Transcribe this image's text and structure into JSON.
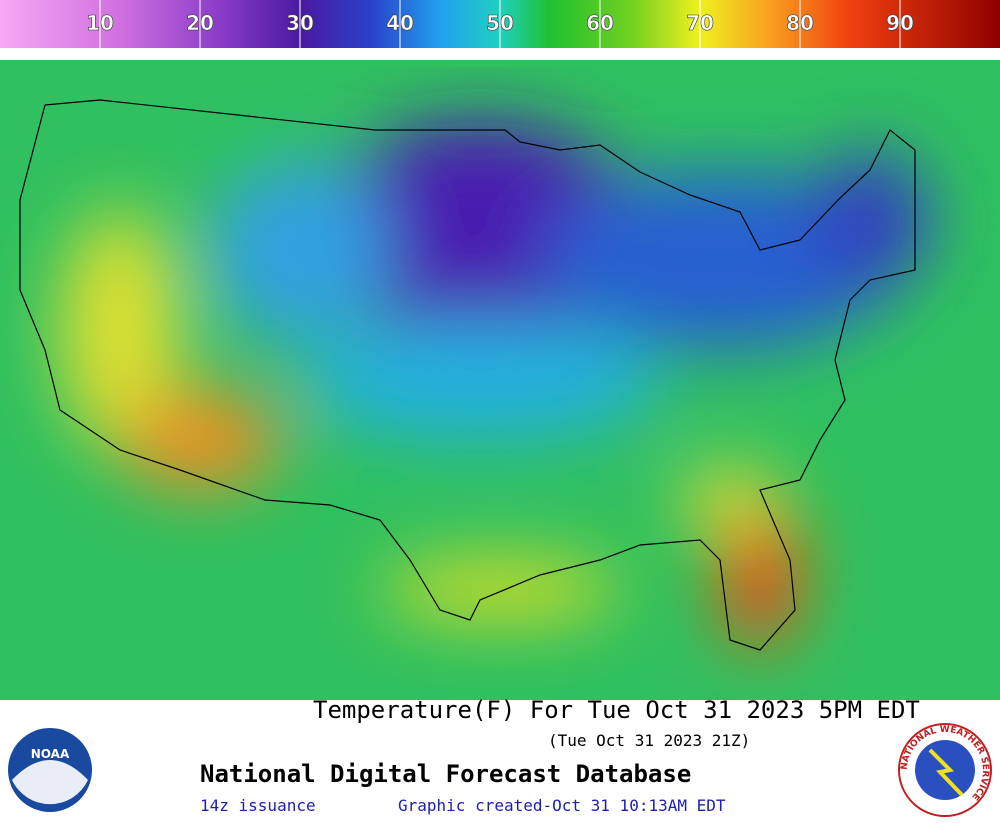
{
  "legend": {
    "range": [
      0,
      100
    ],
    "ticks": [
      10,
      20,
      30,
      40,
      50,
      60,
      70,
      80,
      90
    ]
  },
  "title": "Temperature(F) For Tue Oct 31 2023  5PM EDT",
  "subtitle": "(Tue Oct 31 2023 21Z)",
  "footer": {
    "name": "National Digital Forecast Database",
    "issuance": "14z issuance",
    "created": "Graphic created-Oct 31 10:13AM EDT"
  },
  "logos": {
    "noaa": "NOAA",
    "nws": "NATIONAL WEATHER SERVICE"
  }
}
